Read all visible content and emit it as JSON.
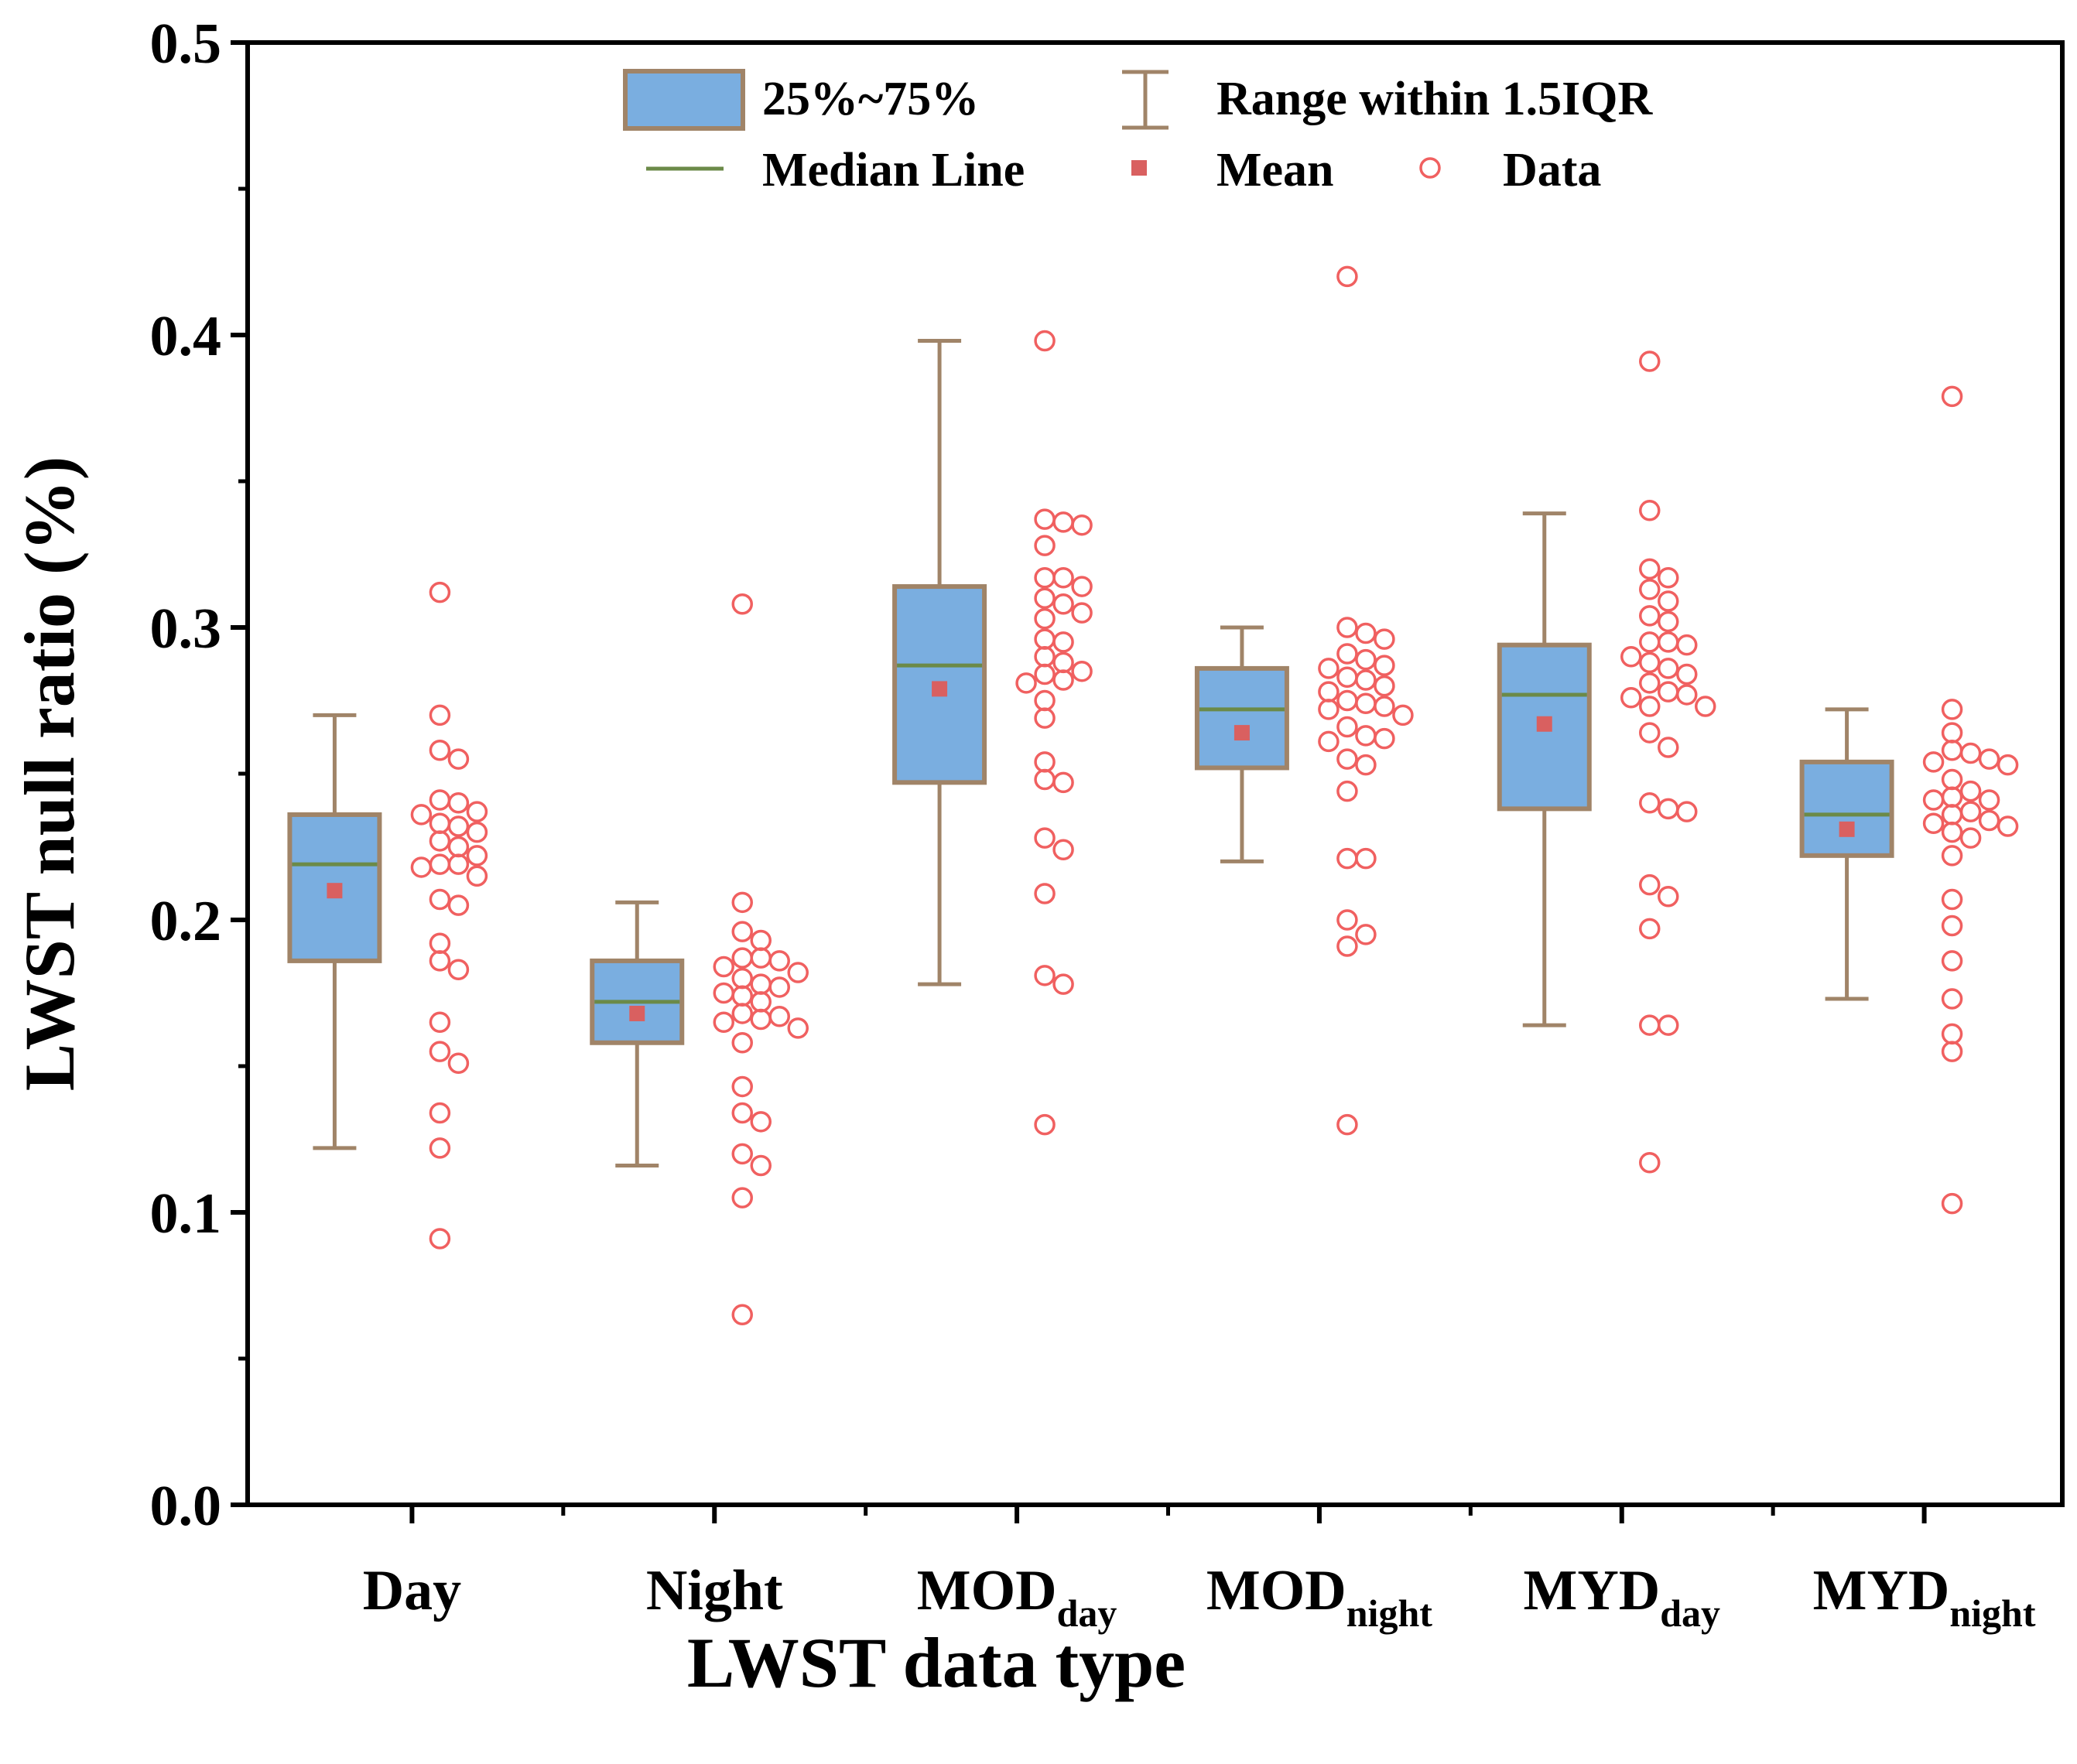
{
  "chart_data": {
    "type": "box",
    "title": "",
    "xlabel": "LWST data type",
    "ylabel": "LWST null ratio (%)",
    "ylim": [
      0.0,
      0.5
    ],
    "yticks": [
      "0.0",
      "0.1",
      "0.2",
      "0.3",
      "0.4",
      "0.5"
    ],
    "categories": [
      {
        "main": "Day",
        "sub": ""
      },
      {
        "main": "Night",
        "sub": ""
      },
      {
        "main": "MOD",
        "sub": "day"
      },
      {
        "main": "MOD",
        "sub": "night"
      },
      {
        "main": "MYD",
        "sub": "day"
      },
      {
        "main": "MYD",
        "sub": "night"
      }
    ],
    "legend": {
      "box": "25%~75%",
      "whisker": "Range within 1.5IQR",
      "median": "Median Line",
      "mean": "Mean",
      "data": "Data"
    },
    "colors": {
      "box_fill": "#7aaee0",
      "box_edge": "#a08468",
      "median": "#6b8a48",
      "mean": "#d96060",
      "data": "#f06060"
    },
    "boxes": [
      {
        "q1": 0.186,
        "median": 0.219,
        "q3": 0.236,
        "whisker_low": 0.122,
        "whisker_high": 0.27,
        "mean": 0.21
      },
      {
        "q1": 0.158,
        "median": 0.172,
        "q3": 0.186,
        "whisker_low": 0.116,
        "whisker_high": 0.206,
        "mean": 0.168
      },
      {
        "q1": 0.247,
        "median": 0.287,
        "q3": 0.314,
        "whisker_low": 0.178,
        "whisker_high": 0.398,
        "mean": 0.279
      },
      {
        "q1": 0.252,
        "median": 0.272,
        "q3": 0.286,
        "whisker_low": 0.22,
        "whisker_high": 0.3,
        "mean": 0.264
      },
      {
        "q1": 0.238,
        "median": 0.277,
        "q3": 0.294,
        "whisker_low": 0.164,
        "whisker_high": 0.339,
        "mean": 0.267
      },
      {
        "q1": 0.222,
        "median": 0.236,
        "q3": 0.254,
        "whisker_low": 0.173,
        "whisker_high": 0.272,
        "mean": 0.231
      }
    ],
    "data_points": [
      [
        0.312,
        0.27,
        0.258,
        0.255,
        0.241,
        0.24,
        0.237,
        0.236,
        0.233,
        0.232,
        0.23,
        0.227,
        0.225,
        0.222,
        0.219,
        0.219,
        0.218,
        0.215,
        0.207,
        0.205,
        0.192,
        0.186,
        0.183,
        0.165,
        0.155,
        0.151,
        0.134,
        0.122,
        0.091
      ],
      [
        0.308,
        0.206,
        0.196,
        0.193,
        0.187,
        0.187,
        0.186,
        0.184,
        0.182,
        0.18,
        0.178,
        0.177,
        0.175,
        0.174,
        0.172,
        0.168,
        0.167,
        0.166,
        0.165,
        0.163,
        0.158,
        0.143,
        0.134,
        0.131,
        0.12,
        0.116,
        0.105,
        0.065
      ],
      [
        0.398,
        0.337,
        0.336,
        0.335,
        0.328,
        0.317,
        0.317,
        0.314,
        0.31,
        0.308,
        0.305,
        0.303,
        0.296,
        0.295,
        0.29,
        0.288,
        0.285,
        0.284,
        0.282,
        0.281,
        0.275,
        0.269,
        0.254,
        0.248,
        0.247,
        0.228,
        0.224,
        0.209,
        0.181,
        0.178,
        0.13
      ],
      [
        0.42,
        0.3,
        0.298,
        0.296,
        0.291,
        0.289,
        0.287,
        0.286,
        0.283,
        0.282,
        0.28,
        0.278,
        0.275,
        0.274,
        0.273,
        0.272,
        0.27,
        0.266,
        0.263,
        0.262,
        0.261,
        0.255,
        0.253,
        0.244,
        0.221,
        0.221,
        0.2,
        0.195,
        0.191,
        0.13
      ],
      [
        0.391,
        0.34,
        0.32,
        0.317,
        0.313,
        0.309,
        0.304,
        0.302,
        0.295,
        0.295,
        0.294,
        0.29,
        0.288,
        0.286,
        0.284,
        0.281,
        0.278,
        0.277,
        0.276,
        0.273,
        0.273,
        0.264,
        0.259,
        0.24,
        0.238,
        0.237,
        0.212,
        0.208,
        0.197,
        0.164,
        0.164,
        0.117
      ],
      [
        0.379,
        0.272,
        0.264,
        0.258,
        0.257,
        0.255,
        0.254,
        0.253,
        0.248,
        0.244,
        0.242,
        0.241,
        0.241,
        0.237,
        0.236,
        0.234,
        0.233,
        0.232,
        0.23,
        0.228,
        0.222,
        0.207,
        0.198,
        0.186,
        0.173,
        0.161,
        0.155,
        0.103
      ]
    ]
  }
}
